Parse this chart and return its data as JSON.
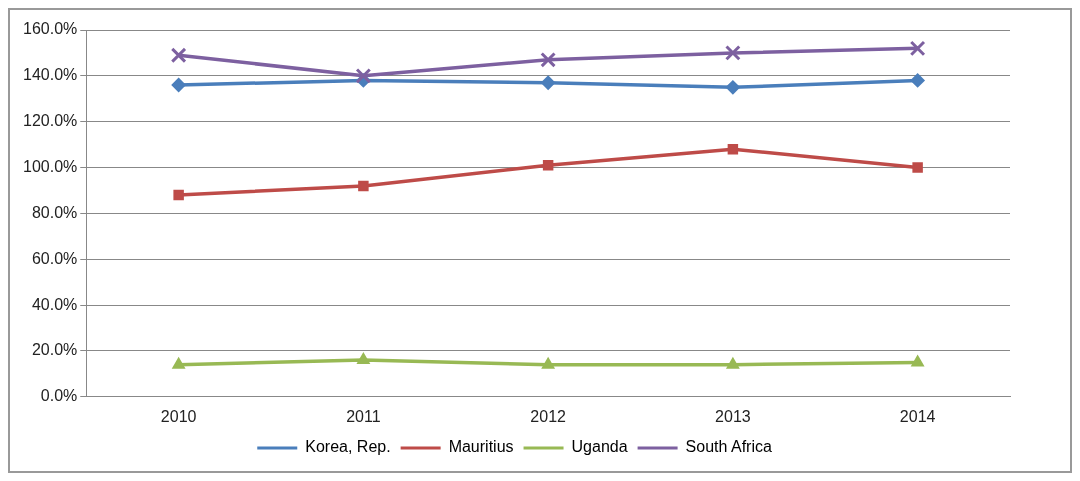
{
  "chart_data": {
    "type": "line",
    "categories": [
      "2010",
      "2011",
      "2012",
      "2013",
      "2014"
    ],
    "series": [
      {
        "name": "Korea, Rep.",
        "color": "#4a7ebb",
        "marker": "diamond",
        "values": [
          136,
          138,
          137,
          135,
          138
        ]
      },
      {
        "name": "Mauritius",
        "color": "#be4b48",
        "marker": "square",
        "values": [
          88,
          92,
          101,
          108,
          100
        ]
      },
      {
        "name": "Uganda",
        "color": "#98b954",
        "marker": "triangle",
        "values": [
          14,
          16,
          14,
          14,
          15
        ]
      },
      {
        "name": "South Africa",
        "color": "#7d60a0",
        "marker": "cross",
        "values": [
          149,
          140,
          147,
          150,
          152
        ]
      }
    ],
    "ylim": [
      0,
      160
    ],
    "yticks": [
      {
        "value": 0,
        "label": "0.0%"
      },
      {
        "value": 20,
        "label": "20.0%"
      },
      {
        "value": 40,
        "label": "40.0%"
      },
      {
        "value": 60,
        "label": "60.0%"
      },
      {
        "value": 80,
        "label": "80.0%"
      },
      {
        "value": 100,
        "label": "100.0%"
      },
      {
        "value": 120,
        "label": "120.0%"
      },
      {
        "value": 140,
        "label": "140.0%"
      },
      {
        "value": 160,
        "label": "160.0%"
      }
    ],
    "grid": "y",
    "legend": "bottom",
    "line_style": "solid"
  }
}
